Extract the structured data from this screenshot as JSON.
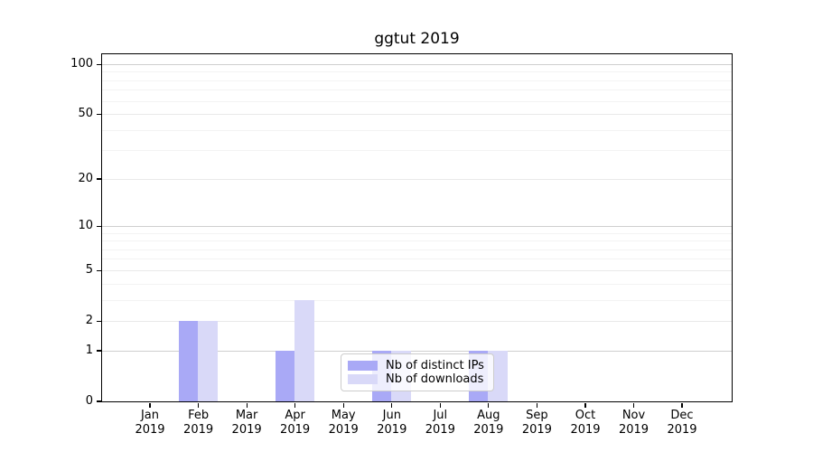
{
  "chart_data": {
    "type": "bar",
    "title": "ggtut 2019",
    "x_months": [
      "Jan",
      "Feb",
      "Mar",
      "Apr",
      "May",
      "Jun",
      "Jul",
      "Aug",
      "Sep",
      "Oct",
      "Nov",
      "Dec"
    ],
    "x_year": "2019",
    "series": [
      {
        "name": "Nb of distinct IPs",
        "color": "#a9a9f6",
        "values": [
          0,
          2,
          0,
          1,
          0,
          1,
          0,
          1,
          0,
          0,
          0,
          0
        ]
      },
      {
        "name": "Nb of downloads",
        "color": "#d9d9f8",
        "values": [
          0,
          2,
          0,
          3,
          0,
          1,
          0,
          1,
          0,
          0,
          0,
          0
        ]
      }
    ],
    "yscale": "log1p",
    "ylim": [
      0,
      115
    ],
    "yticks": [
      0,
      1,
      2,
      5,
      10,
      20,
      50,
      100
    ],
    "ygrid_strong": [
      1,
      10,
      100
    ],
    "ygrid_minor": [
      3,
      4,
      6,
      7,
      8,
      9,
      30,
      40,
      60,
      70,
      80,
      90
    ],
    "grid": "horizontal",
    "legend_location": "inside lower-center"
  }
}
